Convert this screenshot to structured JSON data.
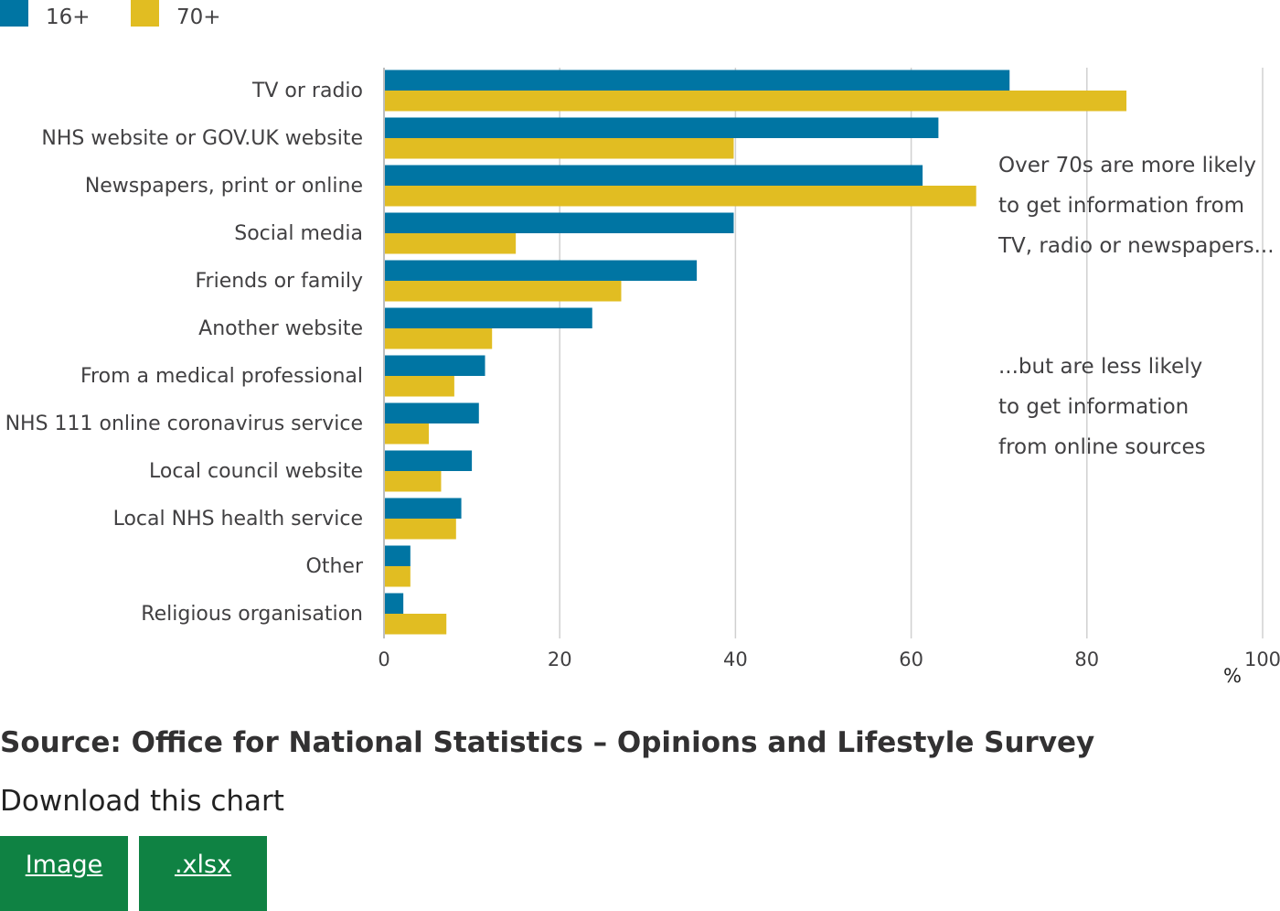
{
  "legend": [
    {
      "label": "16+",
      "color": "#0075a3"
    },
    {
      "label": "70+",
      "color": "#e1bd22"
    }
  ],
  "chart_data": {
    "type": "bar",
    "orientation": "horizontal",
    "categories": [
      "TV or radio",
      "NHS website or GOV.UK website",
      "Newspapers, print or online",
      "Social media",
      "Friends or family",
      "Another website",
      "From a medical professional",
      "NHS 111 online coronavirus service",
      "Local council website",
      "Local NHS health service",
      "Other",
      "Religious organisation"
    ],
    "series": [
      {
        "name": "16+",
        "color": "#0075a3",
        "values": [
          71.2,
          63.1,
          61.3,
          39.8,
          35.6,
          23.7,
          11.5,
          10.8,
          10.0,
          8.8,
          3.0,
          2.2
        ]
      },
      {
        "name": "70+",
        "color": "#e1bd22",
        "values": [
          84.5,
          39.8,
          67.4,
          15.0,
          27.0,
          12.3,
          8.0,
          5.1,
          6.5,
          8.2,
          3.0,
          7.1
        ]
      }
    ],
    "xlim": [
      0,
      100
    ],
    "xticks": [
      0,
      20,
      40,
      60,
      80,
      100
    ],
    "xunit": "%",
    "grid": true,
    "legend_position": "top-left"
  },
  "annotations": {
    "first": [
      "Over 70s are more likely",
      "to get information from",
      "TV, radio or newspapers..."
    ],
    "second": [
      "...but are less likely",
      "to get information",
      "from online sources"
    ]
  },
  "source": "Source: Office for National Statistics – Opinions and Lifestyle Survey",
  "download": {
    "title": "Download this chart",
    "image_label": "Image",
    "xlsx_label": ".xlsx"
  }
}
